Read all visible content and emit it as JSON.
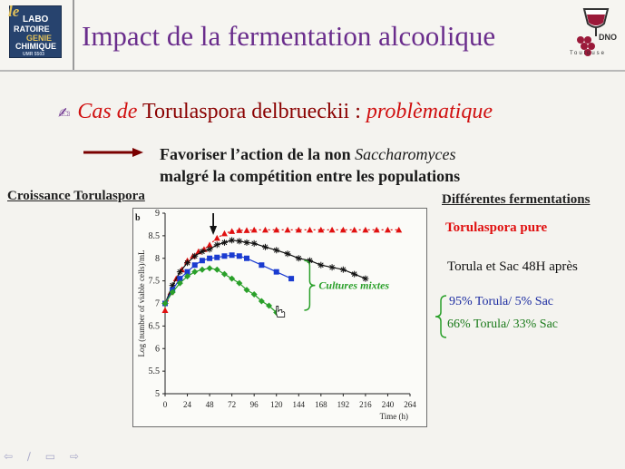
{
  "header": {
    "title": "Impact de la fermentation alcoolique",
    "logo_left": {
      "le": "le",
      "l1": "LABO",
      "l2": "RATOIRE",
      "l3": "GENIE",
      "l4": "CHIMIQUE",
      "l5": "UMR 5503"
    },
    "logo_right": {
      "text": "Toulouse",
      "tag": "DNO"
    }
  },
  "bullet": {
    "icon": "hand-pointer-icon",
    "part1": "Cas de",
    "part2": "Torulaspora delbrueckii :",
    "part3": "problèmatique"
  },
  "statement": {
    "line1_a": "Favoriser l’action de la non",
    "line1_b": "Saccharomyces",
    "line2": "malgré la compétition entre les populations"
  },
  "labels": {
    "growth": "Croissance Torulaspora",
    "fermentations": "Différentes fermentations"
  },
  "legend": [
    {
      "text": "Torulaspora pure",
      "color": "#e01010"
    },
    {
      "text": "Torula et Sac 48H après",
      "color": "#111111"
    },
    {
      "text": "95% Torula/ 5% Sac",
      "color": "#1a2aa0"
    },
    {
      "text": "66% Torula/ 33% Sac",
      "color": "#1a7a1a"
    }
  ],
  "nav": "⇦ ∕ ▭ ⇨",
  "chart_data": {
    "type": "scatter",
    "panel_label": "b",
    "ylabel": "Log (number of viable cells)/mL",
    "xlabel": "Time (h)",
    "xlim": [
      0,
      264
    ],
    "ylim": [
      5,
      9
    ],
    "xticks": [
      "0",
      "24",
      "48",
      "72",
      "96",
      "120",
      "144",
      "168",
      "192",
      "216",
      "240",
      "264"
    ],
    "yticks": [
      "5",
      "5.5",
      "6",
      "6.5",
      "7",
      "7.5",
      "8",
      "8.5",
      "9"
    ],
    "annotation": "Cultures mixtes",
    "arrow_at_x": 48,
    "series": [
      {
        "color": "#e01010",
        "marker": "triangle",
        "line": "dotted",
        "x": [
          0,
          6,
          12,
          18,
          24,
          30,
          36,
          42,
          48,
          56,
          64,
          72,
          80,
          88,
          96,
          108,
          120,
          132,
          144,
          156,
          168,
          180,
          192,
          204,
          216,
          228,
          240,
          252
        ],
        "y": [
          6.85,
          7.25,
          7.55,
          7.75,
          7.95,
          8.05,
          8.15,
          8.2,
          8.3,
          8.45,
          8.55,
          8.6,
          8.62,
          8.62,
          8.63,
          8.63,
          8.63,
          8.63,
          8.63,
          8.63,
          8.63,
          8.63,
          8.63,
          8.63,
          8.63,
          8.63,
          8.63,
          8.63
        ]
      },
      {
        "color": "#111111",
        "marker": "asterisk",
        "line": "solid",
        "x": [
          0,
          8,
          16,
          24,
          32,
          40,
          48,
          56,
          64,
          72,
          80,
          88,
          96,
          108,
          120,
          132,
          144,
          156,
          168,
          180,
          192,
          204,
          216
        ],
        "y": [
          7.0,
          7.4,
          7.7,
          7.9,
          8.05,
          8.15,
          8.2,
          8.3,
          8.35,
          8.4,
          8.38,
          8.35,
          8.33,
          8.25,
          8.18,
          8.1,
          8.0,
          7.95,
          7.85,
          7.8,
          7.75,
          7.65,
          7.55
        ]
      },
      {
        "color": "#1a3bd0",
        "marker": "square",
        "line": "solid",
        "x": [
          0,
          8,
          16,
          24,
          32,
          40,
          48,
          56,
          64,
          72,
          80,
          88,
          104,
          120,
          136
        ],
        "y": [
          7.0,
          7.3,
          7.55,
          7.7,
          7.85,
          7.95,
          8.0,
          8.02,
          8.05,
          8.07,
          8.05,
          8.0,
          7.85,
          7.7,
          7.55
        ]
      },
      {
        "color": "#2aa02a",
        "marker": "diamond",
        "line": "solid",
        "x": [
          0,
          8,
          16,
          24,
          32,
          40,
          48,
          56,
          64,
          72,
          80,
          88,
          96,
          104,
          112,
          120
        ],
        "y": [
          7.0,
          7.25,
          7.45,
          7.6,
          7.7,
          7.75,
          7.78,
          7.75,
          7.65,
          7.55,
          7.45,
          7.3,
          7.2,
          7.05,
          6.95,
          6.8
        ]
      }
    ]
  }
}
